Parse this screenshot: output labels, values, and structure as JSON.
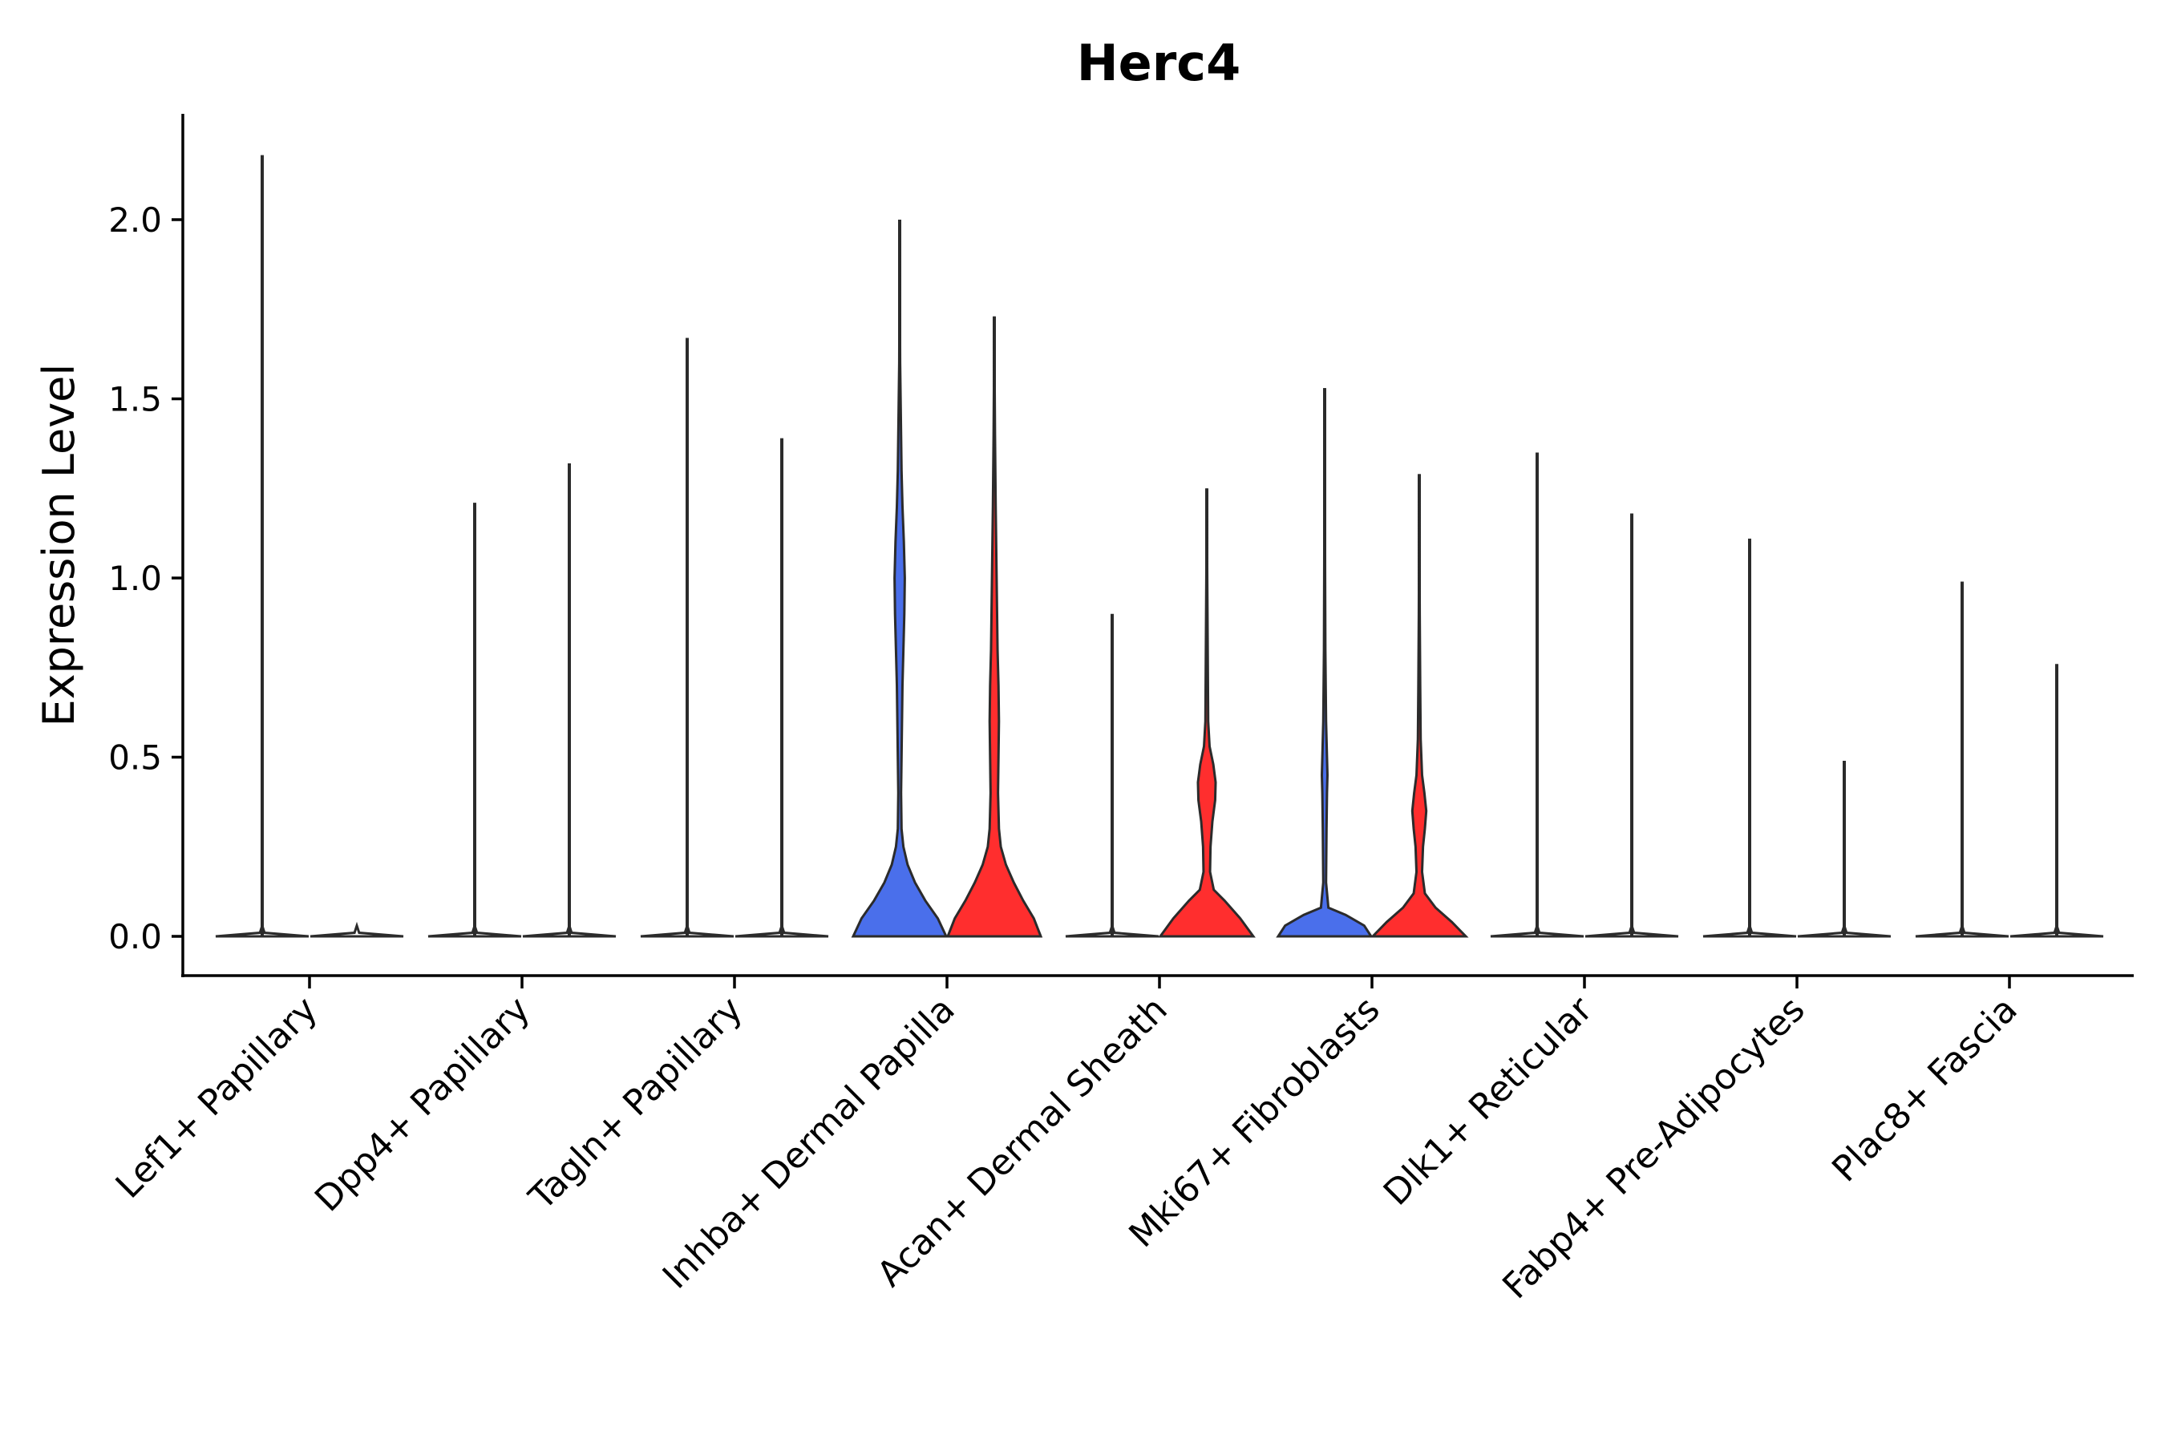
{
  "chart_data": {
    "type": "violin",
    "title": "Herc4",
    "xlabel": "",
    "ylabel": "Expression Level",
    "ylim": [
      -0.11,
      2.3
    ],
    "yticks": [
      0.0,
      0.5,
      1.0,
      1.5,
      2.0
    ],
    "ytick_labels": [
      "0.0",
      "0.5",
      "1.0",
      "1.5",
      "2.0"
    ],
    "grid": false,
    "legend": "none",
    "colors": {
      "group_a": "#4A6FEB",
      "group_b": "#FF2E2E",
      "outline": "#2b2b2b"
    },
    "categories": [
      "Lef1+ Papillary",
      "Dpp4+ Papillary",
      "Tagln+ Papillary",
      "Inhba+ Dermal Papilla",
      "Acan+ Dermal Sheath",
      "Mki67+ Fibroblasts",
      "Dlk1+ Reticular",
      "Fabp4+ Pre-Adipocytes",
      "Plac8+ Fascia"
    ],
    "series": [
      {
        "name": "group_a",
        "color": "#4A6FEB",
        "violins": [
          {
            "category": "Lef1+ Papillary",
            "max": 2.18,
            "profile": [
              [
                0,
                1
              ],
              [
                0.01,
                0.05
              ],
              [
                0.03,
                0
              ]
            ]
          },
          {
            "category": "Dpp4+ Papillary",
            "max": 1.21,
            "profile": [
              [
                0,
                1
              ],
              [
                0.01,
                0.05
              ],
              [
                0.03,
                0
              ]
            ]
          },
          {
            "category": "Tagln+ Papillary",
            "max": 1.67,
            "profile": [
              [
                0,
                1
              ],
              [
                0.01,
                0.05
              ],
              [
                0.03,
                0
              ]
            ]
          },
          {
            "category": "Inhba+ Dermal Papilla",
            "max": 2.0,
            "profile": [
              [
                0,
                1
              ],
              [
                0.05,
                0.82
              ],
              [
                0.1,
                0.55
              ],
              [
                0.15,
                0.33
              ],
              [
                0.2,
                0.17
              ],
              [
                0.25,
                0.08
              ],
              [
                0.3,
                0.04
              ],
              [
                0.4,
                0.03
              ],
              [
                0.5,
                0.04
              ],
              [
                0.6,
                0.05
              ],
              [
                0.7,
                0.06
              ],
              [
                0.8,
                0.08
              ],
              [
                0.9,
                0.1
              ],
              [
                1.0,
                0.11
              ],
              [
                1.1,
                0.09
              ],
              [
                1.2,
                0.06
              ],
              [
                1.3,
                0.04
              ],
              [
                1.4,
                0.03
              ],
              [
                1.5,
                0.02
              ],
              [
                1.6,
                0.01
              ],
              [
                1.8,
                0.005
              ],
              [
                2.0,
                0
              ]
            ]
          },
          {
            "category": "Acan+ Dermal Sheath",
            "max": 0.9,
            "profile": [
              [
                0,
                1
              ],
              [
                0.01,
                0.05
              ],
              [
                0.03,
                0
              ]
            ]
          },
          {
            "category": "Mki67+ Fibroblasts",
            "max": 1.53,
            "profile": [
              [
                0,
                1
              ],
              [
                0.03,
                0.85
              ],
              [
                0.06,
                0.45
              ],
              [
                0.08,
                0.08
              ],
              [
                0.15,
                0.03
              ],
              [
                0.3,
                0.04
              ],
              [
                0.4,
                0.05
              ],
              [
                0.45,
                0.06
              ],
              [
                0.5,
                0.05
              ],
              [
                0.6,
                0.03
              ],
              [
                0.8,
                0.015
              ],
              [
                1.0,
                0.01
              ],
              [
                1.53,
                0
              ]
            ]
          },
          {
            "category": "Dlk1+ Reticular",
            "max": 1.35,
            "profile": [
              [
                0,
                1
              ],
              [
                0.01,
                0.05
              ],
              [
                0.03,
                0
              ]
            ]
          },
          {
            "category": "Fabp4+ Pre-Adipocytes",
            "max": 1.11,
            "profile": [
              [
                0,
                1
              ],
              [
                0.01,
                0.05
              ],
              [
                0.03,
                0
              ]
            ]
          },
          {
            "category": "Plac8+ Fascia",
            "max": 0.99,
            "profile": [
              [
                0,
                1
              ],
              [
                0.01,
                0.05
              ],
              [
                0.03,
                0
              ]
            ]
          }
        ]
      },
      {
        "name": "group_b",
        "color": "#FF2E2E",
        "violins": [
          {
            "category": "Lef1+ Papillary",
            "max": 0.0,
            "profile": [
              [
                0,
                1
              ],
              [
                0.01,
                0.05
              ],
              [
                0.03,
                0
              ]
            ]
          },
          {
            "category": "Dpp4+ Papillary",
            "max": 1.32,
            "profile": [
              [
                0,
                1
              ],
              [
                0.01,
                0.05
              ],
              [
                0.03,
                0
              ]
            ]
          },
          {
            "category": "Tagln+ Papillary",
            "max": 1.39,
            "profile": [
              [
                0,
                1
              ],
              [
                0.01,
                0.05
              ],
              [
                0.03,
                0
              ]
            ]
          },
          {
            "category": "Inhba+ Dermal Papilla",
            "max": 1.73,
            "profile": [
              [
                0,
                1
              ],
              [
                0.05,
                0.85
              ],
              [
                0.1,
                0.62
              ],
              [
                0.15,
                0.42
              ],
              [
                0.2,
                0.25
              ],
              [
                0.25,
                0.14
              ],
              [
                0.3,
                0.1
              ],
              [
                0.4,
                0.08
              ],
              [
                0.5,
                0.09
              ],
              [
                0.6,
                0.1
              ],
              [
                0.7,
                0.09
              ],
              [
                0.8,
                0.07
              ],
              [
                0.9,
                0.06
              ],
              [
                1.0,
                0.05
              ],
              [
                1.2,
                0.03
              ],
              [
                1.4,
                0.015
              ],
              [
                1.6,
                0.005
              ],
              [
                1.73,
                0
              ]
            ]
          },
          {
            "category": "Acan+ Dermal Sheath",
            "max": 1.25,
            "profile": [
              [
                0,
                1
              ],
              [
                0.05,
                0.72
              ],
              [
                0.1,
                0.38
              ],
              [
                0.13,
                0.15
              ],
              [
                0.18,
                0.07
              ],
              [
                0.25,
                0.08
              ],
              [
                0.32,
                0.12
              ],
              [
                0.38,
                0.18
              ],
              [
                0.43,
                0.19
              ],
              [
                0.48,
                0.14
              ],
              [
                0.53,
                0.06
              ],
              [
                0.6,
                0.03
              ],
              [
                0.8,
                0.02
              ],
              [
                1.0,
                0.01
              ],
              [
                1.25,
                0
              ]
            ]
          },
          {
            "category": "Mki67+ Fibroblasts",
            "max": 1.29,
            "profile": [
              [
                0,
                1
              ],
              [
                0.04,
                0.7
              ],
              [
                0.08,
                0.35
              ],
              [
                0.12,
                0.12
              ],
              [
                0.18,
                0.06
              ],
              [
                0.25,
                0.08
              ],
              [
                0.3,
                0.12
              ],
              [
                0.35,
                0.15
              ],
              [
                0.4,
                0.11
              ],
              [
                0.45,
                0.06
              ],
              [
                0.55,
                0.03
              ],
              [
                0.7,
                0.02
              ],
              [
                0.9,
                0.01
              ],
              [
                1.29,
                0
              ]
            ]
          },
          {
            "category": "Dlk1+ Reticular",
            "max": 1.18,
            "profile": [
              [
                0,
                1
              ],
              [
                0.01,
                0.05
              ],
              [
                0.03,
                0
              ]
            ]
          },
          {
            "category": "Fabp4+ Pre-Adipocytes",
            "max": 0.49,
            "profile": [
              [
                0,
                1
              ],
              [
                0.01,
                0.05
              ],
              [
                0.03,
                0
              ]
            ]
          },
          {
            "category": "Plac8+ Fascia",
            "max": 0.76,
            "profile": [
              [
                0,
                1
              ],
              [
                0.01,
                0.05
              ],
              [
                0.03,
                0
              ]
            ]
          }
        ]
      }
    ]
  }
}
